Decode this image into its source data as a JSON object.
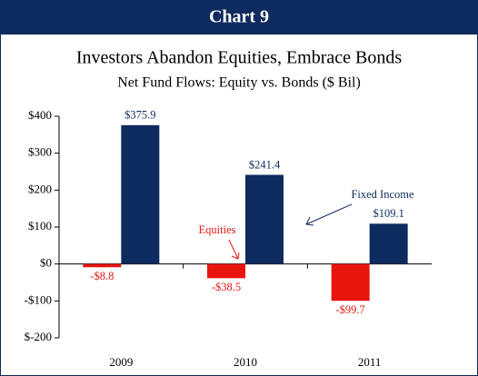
{
  "header": "Chart 9",
  "chart_data": {
    "type": "bar",
    "title": "Investors Abandon Equities, Embrace Bonds",
    "subtitle": "Net Fund Flows: Equity vs. Bonds ($ Bil)",
    "categories": [
      "2009",
      "2010",
      "2011"
    ],
    "series": [
      {
        "name": "Equities",
        "color": "#e8150e",
        "values": [
          -8.8,
          -38.5,
          -99.7
        ],
        "value_labels": [
          "-$8.8",
          "-$38.5",
          "-$99.7"
        ]
      },
      {
        "name": "Fixed Income",
        "color": "#0d2b5e",
        "values": [
          375.9,
          241.4,
          109.1
        ],
        "value_labels": [
          "$375.9",
          "$241.4",
          "$109.1"
        ]
      }
    ],
    "ylim": [
      -200,
      400
    ],
    "yticks": [
      {
        "value": -200,
        "label": "$-200"
      },
      {
        "value": -100,
        "label": "-$100"
      },
      {
        "value": 0,
        "label": "$0"
      },
      {
        "value": 100,
        "label": "$100"
      },
      {
        "value": 200,
        "label": "$200"
      },
      {
        "value": 300,
        "label": "$300"
      },
      {
        "value": 400,
        "label": "$400"
      }
    ],
    "grid": false
  }
}
